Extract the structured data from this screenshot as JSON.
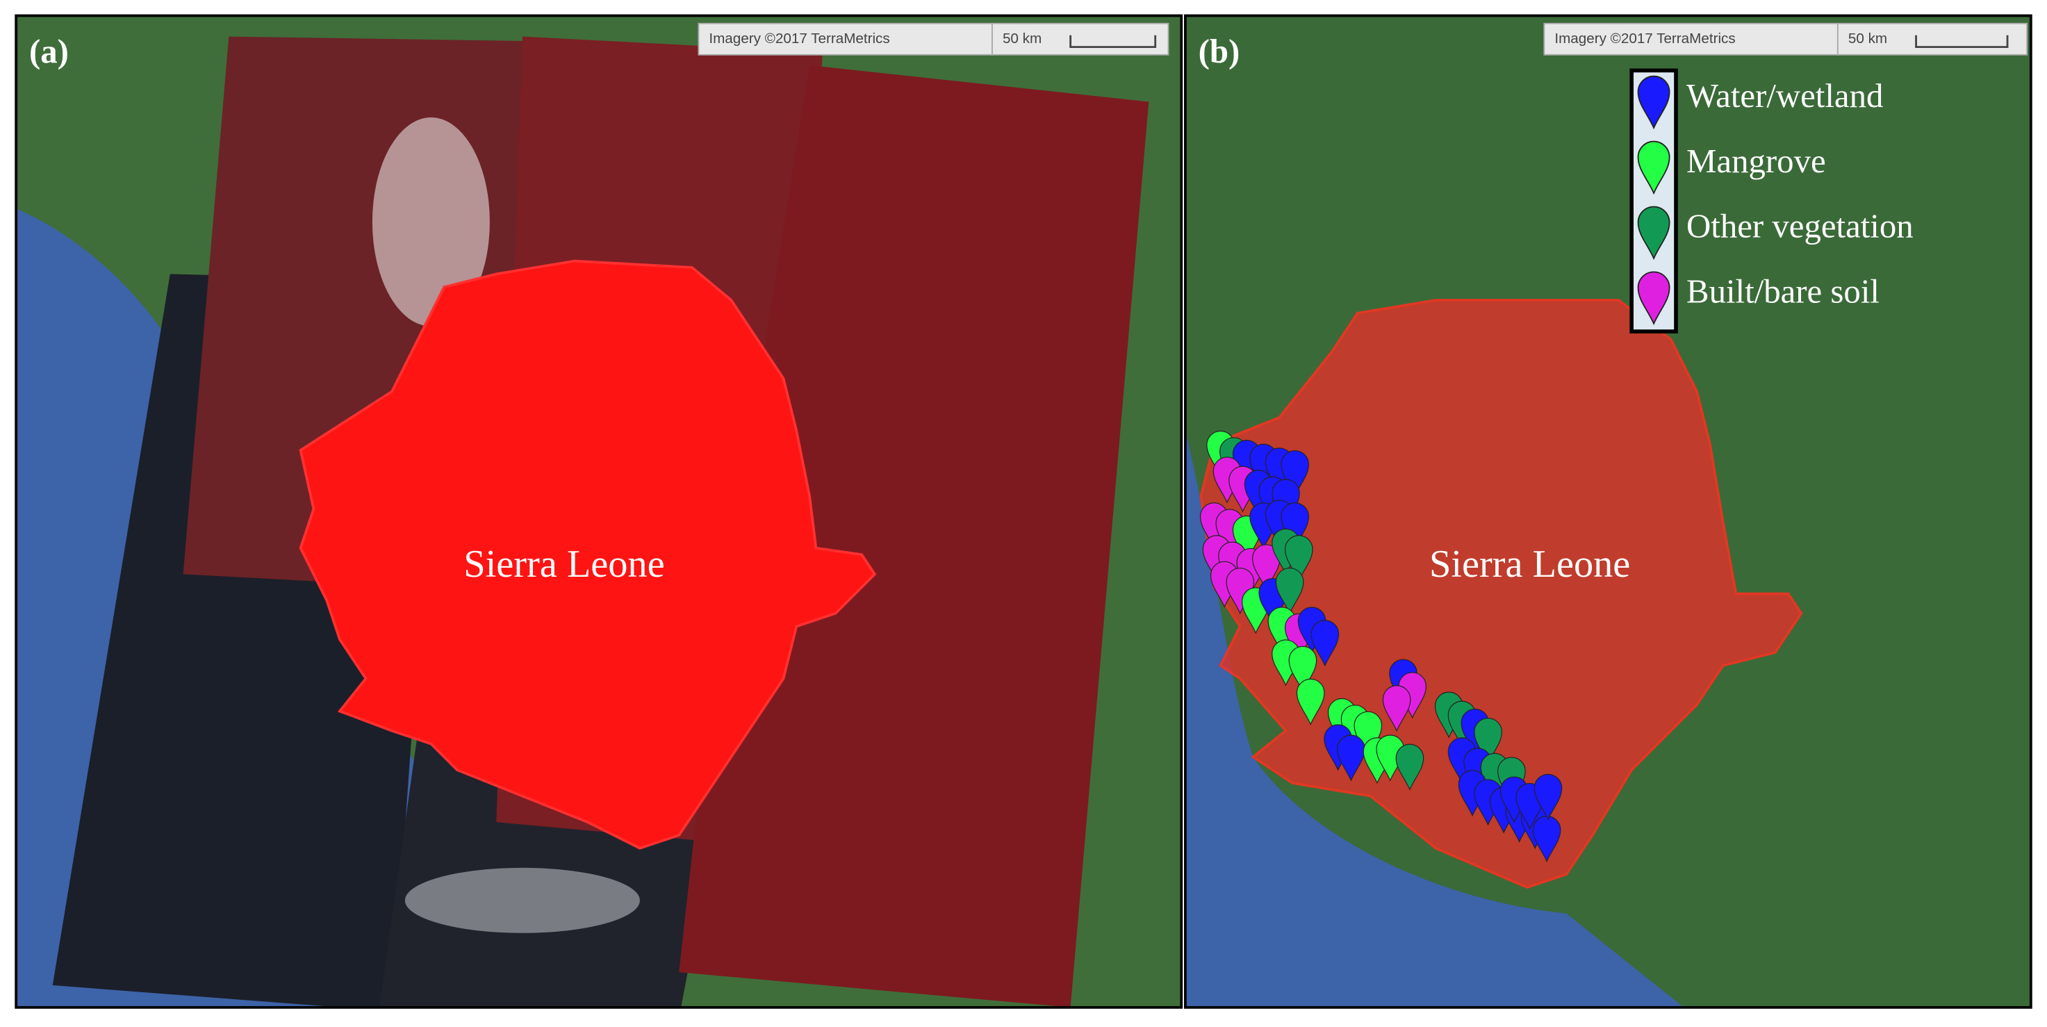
{
  "panels": [
    {
      "label": "(a)",
      "attribution": "Imagery ©2017 TerraMetrics",
      "scale": "50 km",
      "country": "Sierra Leone"
    },
    {
      "label": "(b)",
      "attribution": "Imagery ©2017 TerraMetrics",
      "scale": "50 km",
      "country": "Sierra Leone",
      "legend": [
        {
          "name": "Water/wetland",
          "color": "#1a1aff"
        },
        {
          "name": "Mangrove",
          "color": "#22ff44"
        },
        {
          "name": "Other vegetation",
          "color": "#129a55"
        },
        {
          "name": "Built/bare soil",
          "color": "#e020e0"
        }
      ]
    }
  ]
}
